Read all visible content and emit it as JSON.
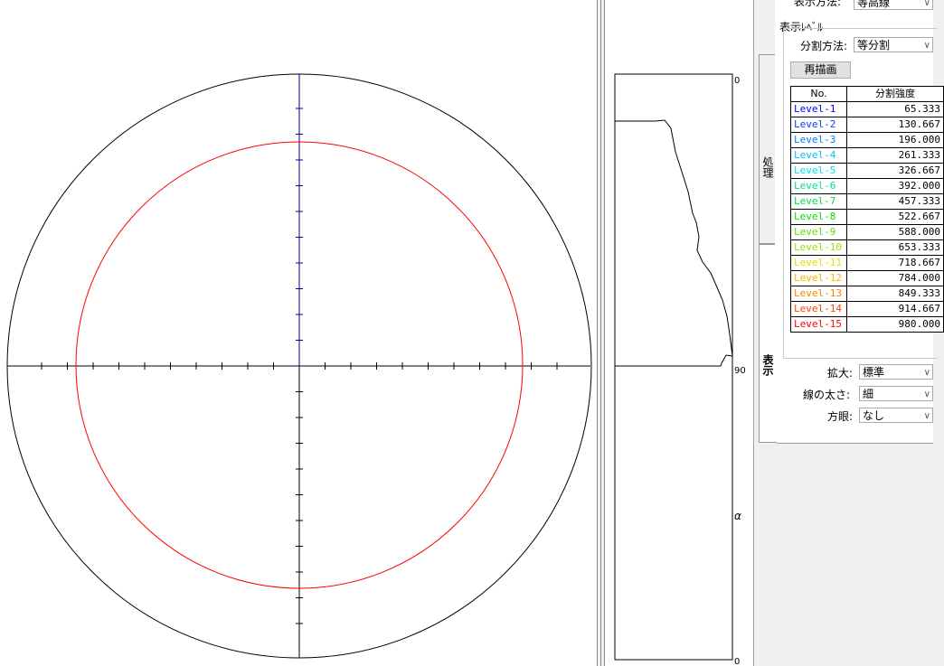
{
  "settings": {
    "display_method_label": "表示方法:",
    "display_method_value": "等高線",
    "display_level_title": "表示ﾚﾍﾞﾙ",
    "division_method_label": "分割方法:",
    "division_method_value": "等分割",
    "redraw_label": "再描画",
    "zoom_label": "拡大:",
    "zoom_value": "標準",
    "line_width_label": "線の太さ:",
    "line_width_value": "細",
    "grid_label": "方眼:",
    "grid_value": "なし"
  },
  "tabs": {
    "process": "処理",
    "display": "表示"
  },
  "table": {
    "header_no": "No.",
    "header_intensity": "分割強度",
    "levels": [
      {
        "name": "Level-1",
        "value": "65.333",
        "color": "#0000ff"
      },
      {
        "name": "Level-2",
        "value": "130.667",
        "color": "#0040ff"
      },
      {
        "name": "Level-3",
        "value": "196.000",
        "color": "#0080ff"
      },
      {
        "name": "Level-4",
        "value": "261.333",
        "color": "#00c0ff"
      },
      {
        "name": "Level-5",
        "value": "326.667",
        "color": "#00e0e0"
      },
      {
        "name": "Level-6",
        "value": "392.000",
        "color": "#00e080"
      },
      {
        "name": "Level-7",
        "value": "457.333",
        "color": "#00e040"
      },
      {
        "name": "Level-8",
        "value": "522.667",
        "color": "#00e000"
      },
      {
        "name": "Level-9",
        "value": "588.000",
        "color": "#60e000"
      },
      {
        "name": "Level-10",
        "value": "653.333",
        "color": "#a0e000"
      },
      {
        "name": "Level-11",
        "value": "718.667",
        "color": "#e0e000"
      },
      {
        "name": "Level-12",
        "value": "784.000",
        "color": "#ffb000"
      },
      {
        "name": "Level-13",
        "value": "849.333",
        "color": "#ff8000"
      },
      {
        "name": "Level-14",
        "value": "914.667",
        "color": "#ff4000"
      },
      {
        "name": "Level-15",
        "value": "980.000",
        "color": "#ff0000"
      }
    ]
  },
  "profile": {
    "label_top": "0",
    "label_mid": "90",
    "label_alpha": "α",
    "label_bottom": "0"
  },
  "colors": {
    "contour": "#ff0000",
    "axis_up": "#00008b",
    "axis": "#000000"
  }
}
